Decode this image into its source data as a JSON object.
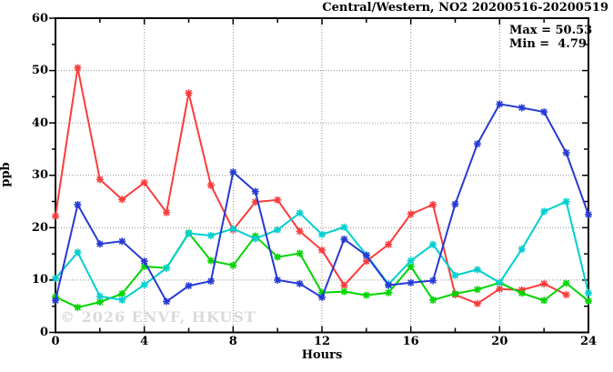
{
  "title": "Central/Western, NO2 20200516-20200519",
  "annotation": {
    "max_label": "Max = 50.53",
    "min_label": "Min =  4.79"
  },
  "watermark": "© 2026 ENVF, HKUST",
  "colors": {
    "red_series": "#fa3c3c",
    "green_series": "#00d400",
    "cyan_series": "#00cfcf",
    "blue_series": "#2639d2",
    "grid": "#909090",
    "frame": "#000000",
    "background": "#ffffff",
    "watermark": "#dadada"
  },
  "chart_data": {
    "type": "line",
    "title": "Central/Western, NO2 20200516-20200519",
    "xlabel": "Hours",
    "ylabel": "ppb",
    "xlim": [
      0,
      24
    ],
    "ylim": [
      0,
      60
    ],
    "x_major_ticks": [
      0,
      4,
      8,
      12,
      16,
      20,
      24
    ],
    "x_tick_labels": [
      "0",
      "4",
      "8",
      "12",
      "16",
      "20",
      "24"
    ],
    "x_minor_step": 2,
    "y_major_ticks": [
      0,
      10,
      20,
      30,
      40,
      50,
      60
    ],
    "y_tick_labels": [
      "0",
      "10",
      "20",
      "30",
      "40",
      "50",
      "60"
    ],
    "y_minor_step": 5,
    "x_gridlines": [
      4,
      8,
      12,
      16,
      20
    ],
    "y_gridlines": [
      10,
      20,
      30,
      40,
      50
    ],
    "grid_style": "dotted",
    "legend": "none",
    "marker": "asterisk",
    "x": [
      0,
      1,
      2,
      3,
      4,
      5,
      6,
      7,
      8,
      9,
      10,
      11,
      12,
      13,
      14,
      15,
      16,
      17,
      18,
      19,
      20,
      21,
      22,
      23,
      24
    ],
    "series": [
      {
        "name": "red",
        "color": "#fa3c3c",
        "values": [
          22.2,
          50.53,
          29.2,
          25.4,
          28.6,
          22.9,
          45.7,
          28.1,
          19.6,
          24.9,
          25.3,
          19.3,
          15.7,
          9.0,
          13.6,
          16.8,
          22.6,
          24.4,
          7.2,
          5.5,
          8.3,
          8.1,
          9.3,
          7.2,
          null
        ]
      },
      {
        "name": "green",
        "color": "#00d400",
        "values": [
          6.8,
          4.79,
          5.8,
          7.4,
          12.6,
          12.3,
          19.0,
          13.7,
          12.8,
          18.4,
          14.4,
          15.1,
          7.6,
          7.8,
          7.1,
          7.6,
          12.6,
          6.2,
          7.4,
          8.2,
          9.5,
          7.5,
          6.1,
          9.4,
          6.0
        ]
      },
      {
        "name": "cyan",
        "color": "#00cfcf",
        "values": [
          10.3,
          15.3,
          6.9,
          6.2,
          9.1,
          12.3,
          18.9,
          18.5,
          19.8,
          17.9,
          19.6,
          22.8,
          18.7,
          20.1,
          14.8,
          9.2,
          13.7,
          16.8,
          10.9,
          12.0,
          9.5,
          15.9,
          23.1,
          25.0,
          7.5
        ]
      },
      {
        "name": "blue",
        "color": "#2639d2",
        "values": [
          6.1,
          24.4,
          16.9,
          17.4,
          13.6,
          5.9,
          8.9,
          9.8,
          30.6,
          26.9,
          10.0,
          9.3,
          6.7,
          17.8,
          14.7,
          9.0,
          9.5,
          9.9,
          24.5,
          36.0,
          43.6,
          42.9,
          42.1,
          34.3,
          22.5
        ]
      }
    ],
    "stats": {
      "max": 50.53,
      "min": 4.79
    }
  }
}
